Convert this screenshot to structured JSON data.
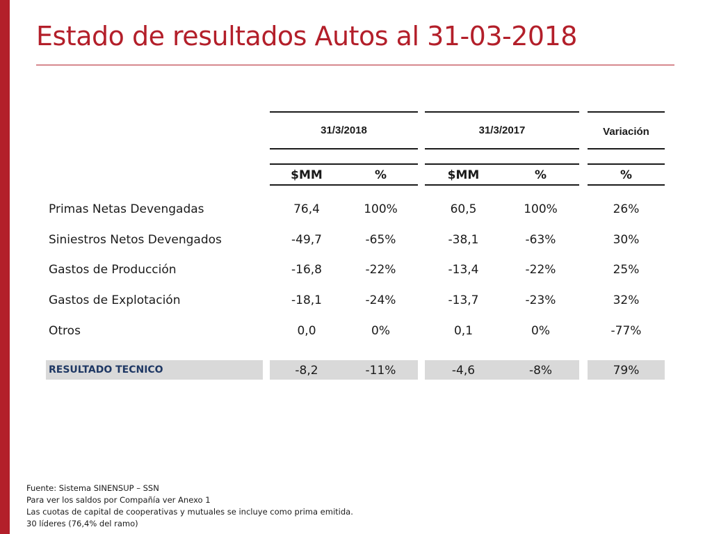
{
  "title": "Estado de resultados Autos al 31-03-2018",
  "headers": {
    "period_2018": "31/3/2018",
    "period_2017": "31/3/2017",
    "variation": "Variación",
    "mm_2018": "$MM",
    "pct_2018": "%",
    "mm_2017": "$MM",
    "pct_2017": "%",
    "pct_var": "%"
  },
  "rows": [
    {
      "label": "Primas Netas Devengadas",
      "mm_2018": "76,4",
      "pct_2018": "100%",
      "mm_2017": "60,5",
      "pct_2017": "100%",
      "variation": "26%"
    },
    {
      "label": "Siniestros Netos Devengados",
      "mm_2018": "-49,7",
      "pct_2018": "-65%",
      "mm_2017": "-38,1",
      "pct_2017": "-63%",
      "variation": "30%"
    },
    {
      "label": "Gastos de Producción",
      "mm_2018": "-16,8",
      "pct_2018": "-22%",
      "mm_2017": "-13,4",
      "pct_2017": "-22%",
      "variation": "25%"
    },
    {
      "label": "Gastos de Explotación",
      "mm_2018": "-18,1",
      "pct_2018": "-24%",
      "mm_2017": "-13,7",
      "pct_2017": "-23%",
      "variation": "32%"
    },
    {
      "label": "Otros",
      "mm_2018": "0,0",
      "pct_2018": "0%",
      "mm_2017": "0,1",
      "pct_2017": "0%",
      "variation": "-77%"
    }
  ],
  "result": {
    "label": "RESULTADO TECNICO",
    "mm_2018": "-8,2",
    "pct_2018": "-11%",
    "mm_2017": "-4,6",
    "pct_2017": "-8%",
    "variation": "79%"
  },
  "notes": [
    "Fuente: Sistema SINENSUP – SSN",
    "Para ver los saldos por Compañía ver Anexo  1",
    "Las cuotas de capital de cooperativas y mutuales se incluye como prima emitida.",
    "30 líderes (76,4% del ramo)"
  ],
  "colors": {
    "accent": "#b31f2a",
    "result_label": "#1f3864",
    "result_bg": "#d9d9d9"
  }
}
